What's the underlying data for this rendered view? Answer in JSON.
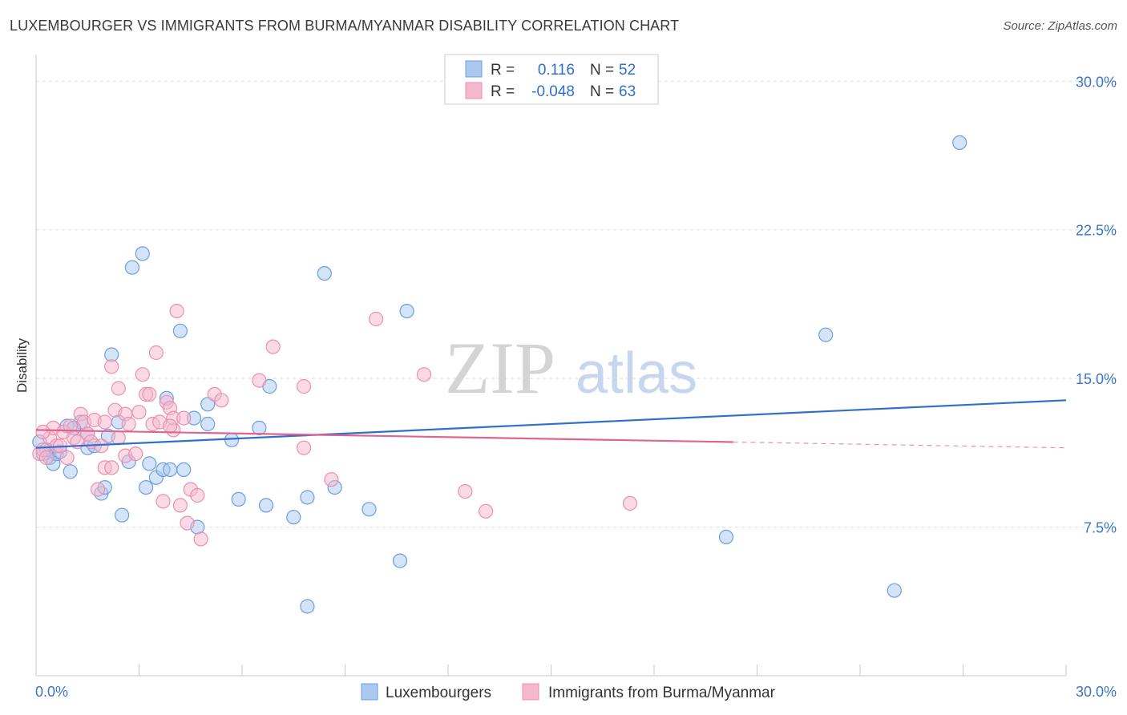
{
  "title": "LUXEMBOURGER VS IMMIGRANTS FROM BURMA/MYANMAR DISABILITY CORRELATION CHART",
  "source": "Source: ZipAtlas.com",
  "watermark": {
    "zip": "ZIP",
    "atlas": "atlas"
  },
  "colors": {
    "blue_fill": "#aac8f0",
    "blue_stroke": "#6a9fe0",
    "blue_line": "#2f6fd0",
    "pink_fill": "#f6b8cc",
    "pink_stroke": "#ec8fae",
    "pink_line": "#e0648e",
    "tick_text": "#3a76c4",
    "grid": "#dddddd"
  },
  "legend": {
    "rows": [
      {
        "r_label": "R = ",
        "r_value": "0.116",
        "n_label": "N = ",
        "n_value": "52",
        "series": "blue"
      },
      {
        "r_label": "R = ",
        "r_value": "-0.048",
        "n_label": "N = ",
        "n_value": "63",
        "series": "pink"
      }
    ]
  },
  "chart_data": {
    "type": "scatter",
    "title": "LUXEMBOURGER VS IMMIGRANTS FROM BURMA/MYANMAR DISABILITY CORRELATION CHART",
    "xlabel": "",
    "ylabel": "Disability",
    "xlim": [
      0,
      30
    ],
    "ylim": [
      0,
      30.9
    ],
    "x_tick_labels": [
      "0.0%",
      "30.0%"
    ],
    "y_ticks": [
      7.5,
      15.0,
      22.5,
      30.0
    ],
    "y_tick_labels": [
      "7.5%",
      "15.0%",
      "22.5%",
      "30.0%"
    ],
    "grid": true,
    "legend_position": "top-center",
    "series": [
      {
        "name": "Luxembourgers",
        "color": "#6a9fe0",
        "trend": {
          "x": [
            0,
            30
          ],
          "y": [
            11.5,
            13.9
          ],
          "dashed_from": null
        },
        "points": [
          [
            0.1,
            11.8
          ],
          [
            0.2,
            11.2
          ],
          [
            0.4,
            11.0
          ],
          [
            0.5,
            10.7
          ],
          [
            0.6,
            11.2
          ],
          [
            0.7,
            11.3
          ],
          [
            0.9,
            12.6
          ],
          [
            1.0,
            10.3
          ],
          [
            1.3,
            12.8
          ],
          [
            1.5,
            11.5
          ],
          [
            1.5,
            12.2
          ],
          [
            1.7,
            11.6
          ],
          [
            1.9,
            9.2
          ],
          [
            2.0,
            9.5
          ],
          [
            2.1,
            12.1
          ],
          [
            2.2,
            16.2
          ],
          [
            2.4,
            12.8
          ],
          [
            2.5,
            8.1
          ],
          [
            2.7,
            10.8
          ],
          [
            2.8,
            20.6
          ],
          [
            3.1,
            21.3
          ],
          [
            3.2,
            9.5
          ],
          [
            3.3,
            10.7
          ],
          [
            3.5,
            10.0
          ],
          [
            3.7,
            10.4
          ],
          [
            3.8,
            14.0
          ],
          [
            3.9,
            10.4
          ],
          [
            4.2,
            17.4
          ],
          [
            4.3,
            10.4
          ],
          [
            4.6,
            13.0
          ],
          [
            4.7,
            7.5
          ],
          [
            5.0,
            12.7
          ],
          [
            5.0,
            13.7
          ],
          [
            5.7,
            11.9
          ],
          [
            5.9,
            8.9
          ],
          [
            6.5,
            12.5
          ],
          [
            6.7,
            8.6
          ],
          [
            6.8,
            14.6
          ],
          [
            7.5,
            8.0
          ],
          [
            7.9,
            3.5
          ],
          [
            7.9,
            9.0
          ],
          [
            8.4,
            20.3
          ],
          [
            8.7,
            9.5
          ],
          [
            9.7,
            8.4
          ],
          [
            10.6,
            5.8
          ],
          [
            10.8,
            18.4
          ],
          [
            20.1,
            7.0
          ],
          [
            23.0,
            17.2
          ],
          [
            25.0,
            4.3
          ],
          [
            26.9,
            26.9
          ],
          [
            0.3,
            11.4
          ],
          [
            1.1,
            12.5
          ]
        ]
      },
      {
        "name": "Immigrants from Burma/Myanmar",
        "color": "#ec8fae",
        "trend": {
          "x": [
            0,
            30
          ],
          "y": [
            12.4,
            11.5
          ],
          "dashed_from": 20.3
        },
        "points": [
          [
            0.1,
            11.2
          ],
          [
            0.2,
            11.4
          ],
          [
            0.3,
            11.0
          ],
          [
            0.4,
            12.0
          ],
          [
            0.5,
            12.5
          ],
          [
            0.6,
            11.6
          ],
          [
            0.8,
            12.3
          ],
          [
            0.9,
            11.0
          ],
          [
            1.0,
            12.6
          ],
          [
            1.1,
            12.0
          ],
          [
            1.3,
            13.2
          ],
          [
            1.4,
            12.8
          ],
          [
            1.5,
            12.2
          ],
          [
            1.6,
            11.8
          ],
          [
            1.7,
            12.9
          ],
          [
            1.8,
            9.4
          ],
          [
            1.9,
            11.6
          ],
          [
            2.0,
            12.8
          ],
          [
            2.0,
            10.5
          ],
          [
            2.2,
            10.5
          ],
          [
            2.2,
            15.6
          ],
          [
            2.3,
            13.4
          ],
          [
            2.4,
            14.5
          ],
          [
            2.4,
            12.0
          ],
          [
            2.6,
            13.2
          ],
          [
            2.6,
            11.1
          ],
          [
            2.7,
            12.7
          ],
          [
            2.9,
            11.2
          ],
          [
            3.0,
            13.3
          ],
          [
            3.1,
            15.2
          ],
          [
            3.2,
            14.2
          ],
          [
            3.3,
            14.2
          ],
          [
            3.4,
            12.7
          ],
          [
            3.5,
            16.3
          ],
          [
            3.6,
            12.8
          ],
          [
            3.7,
            8.8
          ],
          [
            3.8,
            13.8
          ],
          [
            3.9,
            13.5
          ],
          [
            4.0,
            12.4
          ],
          [
            4.0,
            13.0
          ],
          [
            4.1,
            18.4
          ],
          [
            4.2,
            8.6
          ],
          [
            4.3,
            13.0
          ],
          [
            4.4,
            7.7
          ],
          [
            4.5,
            9.4
          ],
          [
            4.7,
            9.1
          ],
          [
            4.8,
            6.9
          ],
          [
            5.2,
            14.2
          ],
          [
            5.4,
            13.9
          ],
          [
            6.5,
            14.9
          ],
          [
            6.9,
            16.6
          ],
          [
            7.8,
            11.5
          ],
          [
            7.8,
            14.6
          ],
          [
            8.6,
            9.9
          ],
          [
            9.9,
            18.0
          ],
          [
            11.3,
            15.2
          ],
          [
            12.5,
            9.3
          ],
          [
            13.1,
            8.3
          ],
          [
            17.3,
            8.7
          ],
          [
            0.2,
            12.3
          ],
          [
            0.7,
            11.6
          ],
          [
            1.2,
            11.8
          ],
          [
            3.9,
            12.6
          ]
        ]
      }
    ]
  },
  "bottom_legend": [
    {
      "label": "Luxembourgers",
      "series": "blue"
    },
    {
      "label": "Immigrants from Burma/Myanmar",
      "series": "pink"
    }
  ]
}
